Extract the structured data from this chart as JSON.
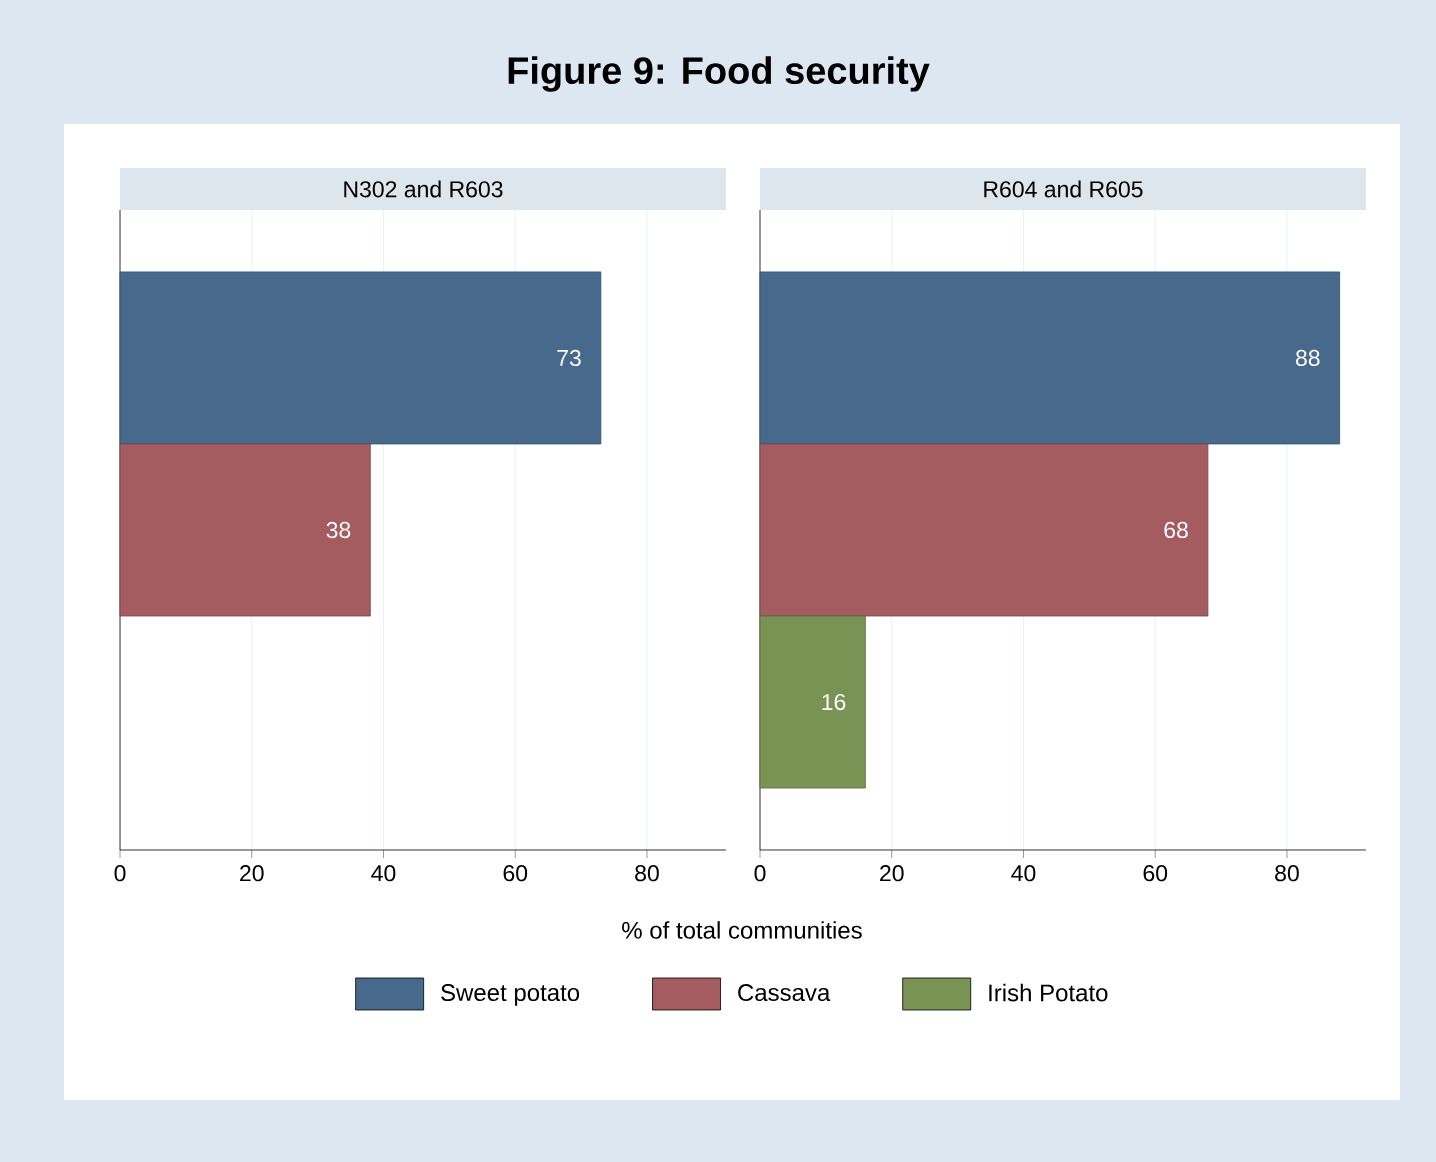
{
  "chart_data": [
    {
      "type": "bar",
      "orientation": "horizontal",
      "title": "Figure 9:   Food security",
      "subtitle": "N302 and R603",
      "xlabel": "% of total communities",
      "categories": [
        null
      ],
      "series": [
        {
          "name": "Sweet potato",
          "color": "#476a8c",
          "values": [
            73
          ]
        },
        {
          "name": "Cassava",
          "color": "#a55c60",
          "values": [
            38
          ]
        },
        {
          "name": "Irish Potato",
          "color": "#789353",
          "values": [
            null
          ]
        }
      ],
      "xlim": [
        0,
        92
      ],
      "xticks": [
        0,
        20,
        40,
        60,
        80
      ],
      "grid": "x",
      "data_labels": true,
      "tick_labels": "x",
      "legend": "bottom"
    },
    {
      "type": "bar",
      "orientation": "horizontal",
      "subtitle": "R604 and R605",
      "categories": [
        null
      ],
      "series": [
        {
          "color": "#476a8c",
          "values": [
            88
          ]
        },
        {
          "color": "#a55c60",
          "values": [
            68
          ]
        },
        {
          "color": "#789353",
          "values": [
            16
          ]
        }
      ],
      "xlim": [
        0,
        92
      ],
      "xticks": [
        0,
        20,
        40,
        60,
        80
      ],
      "grid": "x",
      "data_labels": true,
      "tick_labels": "x"
    }
  ]
}
